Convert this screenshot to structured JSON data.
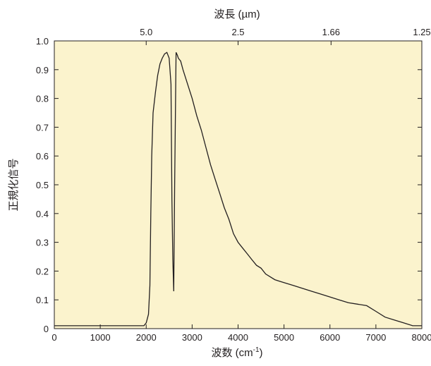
{
  "chart_data": {
    "type": "line",
    "xlabel": "波数 (cm-1)",
    "ylabel": "正規化信号",
    "top_axis_label": "波長 (µm)",
    "xlim": [
      0,
      8000
    ],
    "ylim": [
      0,
      1.0
    ],
    "x_ticks": [
      0,
      1000,
      2000,
      3000,
      4000,
      5000,
      6000,
      7000,
      8000
    ],
    "y_ticks": [
      0,
      0.1,
      0.2,
      0.3,
      0.4,
      0.5,
      0.6,
      0.7,
      0.8,
      0.9,
      1.0
    ],
    "y_tick_labels": [
      "0",
      "0.1",
      "0.2",
      "0.3",
      "0.4",
      "0.5",
      "0.6",
      "0.7",
      "0.8",
      "0.9",
      "1.0"
    ],
    "top_ticks": [
      {
        "label": "5.0",
        "wavenumber": 2000
      },
      {
        "label": "2.5",
        "wavenumber": 4000
      },
      {
        "label": "1.66",
        "wavenumber": 6024
      },
      {
        "label": "1.25",
        "wavenumber": 8000
      }
    ],
    "grid": false,
    "background_color": "#fbf3cd",
    "line_color": "#231f20",
    "series": [
      {
        "x": [
          0,
          1000,
          1900,
          1950,
          2000,
          2050,
          2080,
          2100,
          2120,
          2150,
          2200,
          2250,
          2300,
          2350,
          2400,
          2450,
          2500,
          2540,
          2560,
          2580,
          2600,
          2620,
          2650,
          2680,
          2700,
          2750,
          2800,
          2900,
          3000,
          3100,
          3200,
          3300,
          3400,
          3500,
          3600,
          3700,
          3800,
          3900,
          4000,
          4100,
          4200,
          4300,
          4400,
          4500,
          4600,
          4700,
          4800,
          4900,
          5000,
          5200,
          5400,
          5600,
          5800,
          6000,
          6200,
          6400,
          6600,
          6800,
          7000,
          7200,
          7400,
          7600,
          7800,
          8000
        ],
        "y": [
          0.01,
          0.01,
          0.01,
          0.01,
          0.02,
          0.05,
          0.15,
          0.4,
          0.6,
          0.75,
          0.82,
          0.88,
          0.92,
          0.94,
          0.955,
          0.96,
          0.94,
          0.85,
          0.45,
          0.24,
          0.13,
          0.5,
          0.96,
          0.95,
          0.94,
          0.93,
          0.9,
          0.85,
          0.8,
          0.74,
          0.69,
          0.63,
          0.57,
          0.52,
          0.47,
          0.42,
          0.38,
          0.33,
          0.3,
          0.28,
          0.26,
          0.24,
          0.22,
          0.21,
          0.19,
          0.18,
          0.17,
          0.165,
          0.16,
          0.15,
          0.14,
          0.13,
          0.12,
          0.11,
          0.1,
          0.09,
          0.085,
          0.08,
          0.06,
          0.04,
          0.03,
          0.02,
          0.01,
          0.01
        ]
      }
    ]
  }
}
